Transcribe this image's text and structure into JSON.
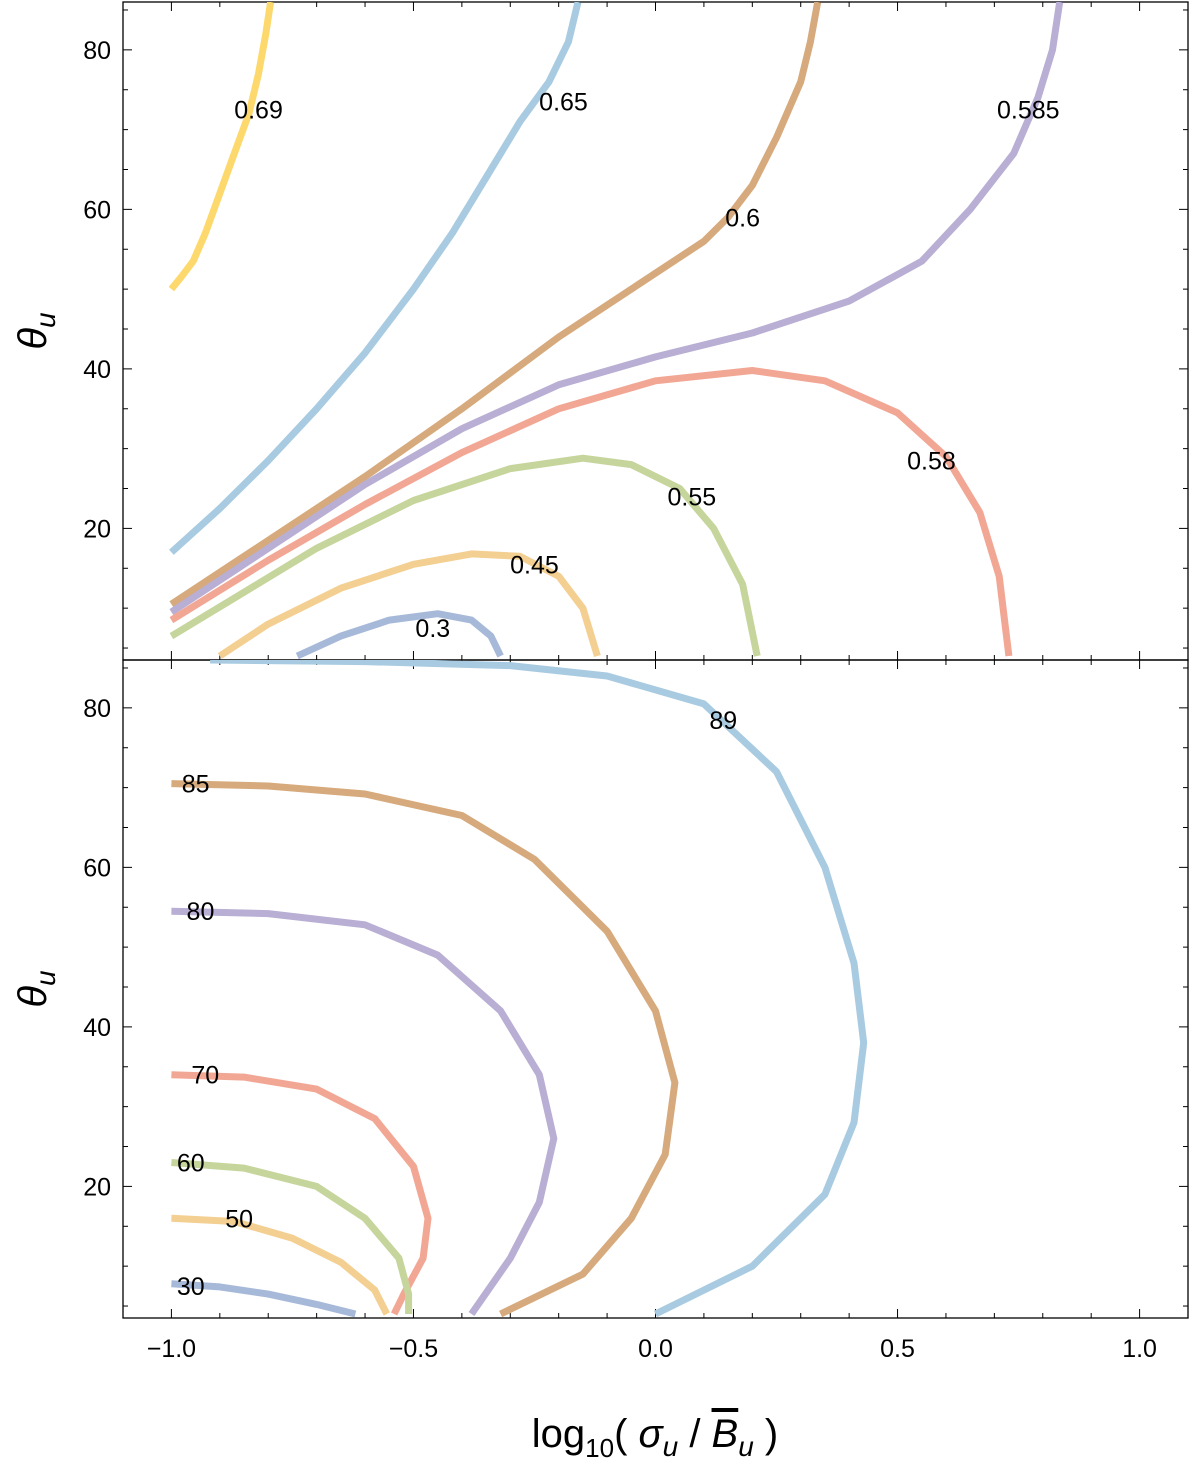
{
  "chart_data": {
    "type": "contour",
    "xlabel": "log10( σu / B̄u )",
    "x_ticks": [
      -1.0,
      -0.5,
      0.0,
      0.5,
      1.0
    ],
    "x_tick_labels": [
      "−1.0",
      "−0.5",
      "0.0",
      "0.5",
      "1.0"
    ],
    "xlim": [
      -1.1,
      1.1
    ],
    "panels": [
      {
        "id": "top",
        "ylabel": "θu",
        "ylim": [
          3.5,
          86
        ],
        "y_ticks": [
          20,
          40,
          60,
          80
        ],
        "y_tick_labels": [
          "20",
          "40",
          "60",
          "80"
        ],
        "contours": [
          {
            "label": "0.69",
            "color": "#fdd96d",
            "label_pos": [
              -0.82,
              72.5
            ],
            "points": [
              [
                -1.0,
                50
              ],
              [
                -0.98,
                51.5
              ],
              [
                -0.955,
                53.5
              ],
              [
                -0.93,
                57
              ],
              [
                -0.9,
                62
              ],
              [
                -0.87,
                67
              ],
              [
                -0.84,
                72
              ],
              [
                -0.82,
                77
              ],
              [
                -0.805,
                82
              ],
              [
                -0.795,
                86
              ]
            ]
          },
          {
            "label": "0.65",
            "color": "#a9cbe1",
            "label_pos": [
              -0.19,
              73.5
            ],
            "points": [
              [
                -1.0,
                17
              ],
              [
                -0.9,
                22.5
              ],
              [
                -0.8,
                28.5
              ],
              [
                -0.7,
                35
              ],
              [
                -0.6,
                42
              ],
              [
                -0.5,
                50
              ],
              [
                -0.42,
                57
              ],
              [
                -0.35,
                64
              ],
              [
                -0.28,
                71
              ],
              [
                -0.22,
                76
              ],
              [
                -0.18,
                81
              ],
              [
                -0.16,
                86
              ]
            ]
          },
          {
            "label": "0.6",
            "color": "#d6aa7c",
            "label_pos": [
              0.18,
              59
            ],
            "points": [
              [
                -1.0,
                10.5
              ],
              [
                -0.8,
                18.5
              ],
              [
                -0.6,
                26.5
              ],
              [
                -0.4,
                35
              ],
              [
                -0.2,
                44
              ],
              [
                0.0,
                52
              ],
              [
                0.1,
                56
              ],
              [
                0.15,
                59
              ],
              [
                0.2,
                63
              ],
              [
                0.25,
                69
              ],
              [
                0.3,
                76
              ],
              [
                0.32,
                81
              ],
              [
                0.335,
                86
              ]
            ]
          },
          {
            "label": "0.585",
            "color": "#b9aed3",
            "label_pos": [
              0.77,
              72.5
            ],
            "points": [
              [
                -1.0,
                9.5
              ],
              [
                -0.8,
                17.5
              ],
              [
                -0.6,
                25.5
              ],
              [
                -0.4,
                32.5
              ],
              [
                -0.2,
                38
              ],
              [
                0.0,
                41.5
              ],
              [
                0.2,
                44.5
              ],
              [
                0.4,
                48.5
              ],
              [
                0.55,
                53.5
              ],
              [
                0.65,
                60
              ],
              [
                0.74,
                67
              ],
              [
                0.79,
                74
              ],
              [
                0.82,
                80
              ],
              [
                0.835,
                86
              ]
            ]
          },
          {
            "label": "0.58",
            "color": "#f2a795",
            "label_pos": [
              0.57,
              28.5
            ],
            "points": [
              [
                -1.0,
                8.5
              ],
              [
                -0.8,
                16
              ],
              [
                -0.6,
                23
              ],
              [
                -0.4,
                29.5
              ],
              [
                -0.2,
                35
              ],
              [
                0.0,
                38.5
              ],
              [
                0.2,
                39.8
              ],
              [
                0.35,
                38.5
              ],
              [
                0.5,
                34.5
              ],
              [
                0.6,
                29
              ],
              [
                0.67,
                22
              ],
              [
                0.71,
                14
              ],
              [
                0.73,
                4
              ]
            ]
          },
          {
            "label": "0.55",
            "color": "#c6d59c",
            "label_pos": [
              0.075,
              24
            ],
            "points": [
              [
                -1.0,
                6.5
              ],
              [
                -0.85,
                12
              ],
              [
                -0.7,
                17.5
              ],
              [
                -0.5,
                23.5
              ],
              [
                -0.3,
                27.5
              ],
              [
                -0.15,
                28.8
              ],
              [
                -0.05,
                28
              ],
              [
                0.05,
                25
              ],
              [
                0.12,
                20
              ],
              [
                0.18,
                13
              ],
              [
                0.21,
                4
              ]
            ]
          },
          {
            "label": "0.45",
            "color": "#f3cf91",
            "label_pos": [
              -0.25,
              15.5
            ],
            "points": [
              [
                -0.9,
                4
              ],
              [
                -0.8,
                8
              ],
              [
                -0.65,
                12.5
              ],
              [
                -0.5,
                15.5
              ],
              [
                -0.38,
                16.8
              ],
              [
                -0.28,
                16.5
              ],
              [
                -0.2,
                14
              ],
              [
                -0.15,
                10
              ],
              [
                -0.12,
                4
              ]
            ]
          },
          {
            "label": "0.3",
            "color": "#a7b9d9",
            "label_pos": [
              -0.46,
              7.5
            ],
            "points": [
              [
                -0.74,
                4
              ],
              [
                -0.65,
                6.5
              ],
              [
                -0.55,
                8.5
              ],
              [
                -0.45,
                9.3
              ],
              [
                -0.38,
                8.5
              ],
              [
                -0.34,
                6.5
              ],
              [
                -0.32,
                4
              ]
            ]
          }
        ]
      },
      {
        "id": "bottom",
        "ylabel": "θu",
        "ylim": [
          3.5,
          86
        ],
        "y_ticks": [
          20,
          40,
          60,
          80
        ],
        "y_tick_labels": [
          "20",
          "40",
          "60",
          "80"
        ],
        "contours": [
          {
            "label": "89",
            "color": "#a9cbe1",
            "label_pos": [
              0.14,
              78.5
            ],
            "points": [
              [
                -0.92,
                86
              ],
              [
                -0.6,
                85.8
              ],
              [
                -0.3,
                85.3
              ],
              [
                -0.1,
                84
              ],
              [
                0.1,
                80.5
              ],
              [
                0.25,
                72
              ],
              [
                0.35,
                60
              ],
              [
                0.41,
                48
              ],
              [
                0.43,
                38
              ],
              [
                0.41,
                28
              ],
              [
                0.35,
                19
              ],
              [
                0.2,
                10
              ],
              [
                0.0,
                4
              ]
            ]
          },
          {
            "label": "85",
            "color": "#d6aa7c",
            "label_pos": [
              -0.95,
              70.5
            ],
            "points": [
              [
                -1.0,
                70.5
              ],
              [
                -0.8,
                70.2
              ],
              [
                -0.6,
                69.2
              ],
              [
                -0.4,
                66.5
              ],
              [
                -0.25,
                61
              ],
              [
                -0.1,
                52
              ],
              [
                0.0,
                42
              ],
              [
                0.04,
                33
              ],
              [
                0.02,
                24
              ],
              [
                -0.05,
                16
              ],
              [
                -0.15,
                9
              ],
              [
                -0.32,
                4
              ]
            ]
          },
          {
            "label": "80",
            "color": "#b9aed3",
            "label_pos": [
              -0.94,
              54.5
            ],
            "points": [
              [
                -1.0,
                54.5
              ],
              [
                -0.8,
                54.2
              ],
              [
                -0.6,
                52.8
              ],
              [
                -0.45,
                49
              ],
              [
                -0.32,
                42
              ],
              [
                -0.24,
                34
              ],
              [
                -0.21,
                26
              ],
              [
                -0.24,
                18
              ],
              [
                -0.3,
                11
              ],
              [
                -0.38,
                4
              ]
            ]
          },
          {
            "label": "70",
            "color": "#f2a795",
            "label_pos": [
              -0.93,
              34
            ],
            "points": [
              [
                -1.0,
                34
              ],
              [
                -0.85,
                33.7
              ],
              [
                -0.7,
                32.2
              ],
              [
                -0.58,
                28.5
              ],
              [
                -0.5,
                22.5
              ],
              [
                -0.47,
                16
              ],
              [
                -0.48,
                11
              ],
              [
                -0.52,
                6.5
              ],
              [
                -0.54,
                4
              ]
            ]
          },
          {
            "label": "60",
            "color": "#c6d59c",
            "label_pos": [
              -0.96,
              23
            ],
            "points": [
              [
                -1.0,
                23
              ],
              [
                -0.85,
                22.3
              ],
              [
                -0.7,
                20
              ],
              [
                -0.6,
                16
              ],
              [
                -0.53,
                11
              ],
              [
                -0.51,
                6.5
              ],
              [
                -0.51,
                4
              ]
            ]
          },
          {
            "label": "50",
            "color": "#f3cf91",
            "label_pos": [
              -0.86,
              16
            ],
            "points": [
              [
                -1.0,
                16
              ],
              [
                -0.87,
                15.6
              ],
              [
                -0.75,
                13.5
              ],
              [
                -0.65,
                10.5
              ],
              [
                -0.58,
                7
              ],
              [
                -0.555,
                4
              ]
            ]
          },
          {
            "label": "30",
            "color": "#a7b9d9",
            "label_pos": [
              -0.96,
              7.5
            ],
            "points": [
              [
                -1.0,
                7.8
              ],
              [
                -0.9,
                7.4
              ],
              [
                -0.8,
                6.5
              ],
              [
                -0.7,
                5.2
              ],
              [
                -0.62,
                4
              ]
            ]
          }
        ]
      }
    ]
  }
}
